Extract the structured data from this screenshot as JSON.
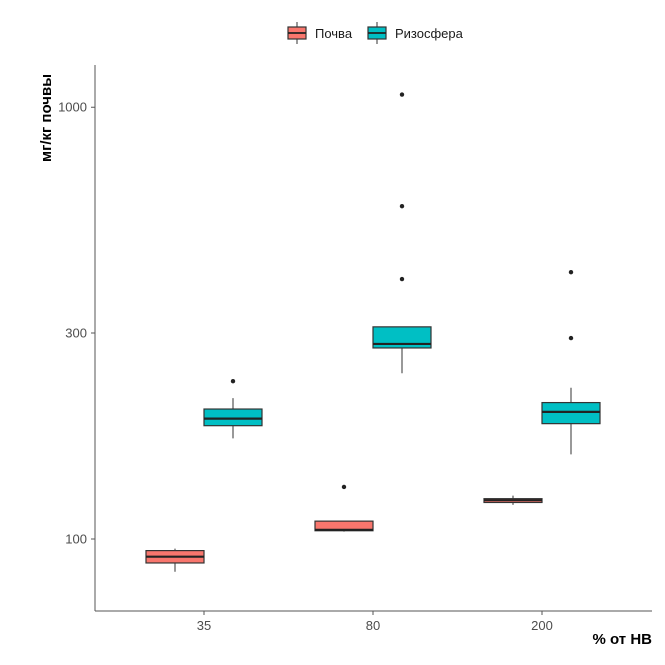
{
  "chart_data": {
    "type": "boxplot",
    "xlabel": "% от НВ",
    "ylabel": "мг/кг почвы",
    "y_scale": "log",
    "ylim": [
      72,
      1350
    ],
    "y_ticks": [
      100,
      300,
      1000
    ],
    "y_tick_labels": [
      "100",
      "300",
      "1000"
    ],
    "categories": [
      "35",
      "80",
      "200"
    ],
    "grid": false,
    "legend_position": "top",
    "series": [
      {
        "name": "Почва",
        "color": "#F8766D",
        "boxes": [
          {
            "category": "35",
            "whisker_low": 84,
            "q1": 88,
            "median": 91,
            "q3": 94,
            "whisker_high": 95,
            "outliers": []
          },
          {
            "category": "80",
            "whisker_low": 104,
            "q1": 104.5,
            "median": 105,
            "q3": 110,
            "whisker_high": 110,
            "outliers": [
              132
            ]
          },
          {
            "category": "200",
            "whisker_low": 120,
            "q1": 121.5,
            "median": 123,
            "q3": 124,
            "whisker_high": 126,
            "outliers": []
          }
        ]
      },
      {
        "name": "Ризосфера",
        "color": "#00BFC4",
        "boxes": [
          {
            "category": "35",
            "whisker_low": 171,
            "q1": 183,
            "median": 190,
            "q3": 200,
            "whisker_high": 212,
            "outliers": [
              232
            ]
          },
          {
            "category": "80",
            "whisker_low": 242,
            "q1": 277,
            "median": 283,
            "q3": 310,
            "whisker_high": 310,
            "outliers": [
              400,
              590,
              1070
            ]
          },
          {
            "category": "200",
            "whisker_low": 157,
            "q1": 185,
            "median": 197,
            "q3": 207,
            "whisker_high": 224,
            "outliers": [
              292,
              415
            ]
          }
        ]
      }
    ]
  }
}
